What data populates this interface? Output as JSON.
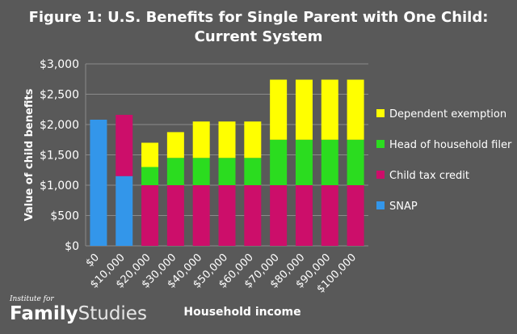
{
  "chart_data": {
    "type": "bar",
    "stacked": true,
    "title": "Figure 1: U.S. Benefits for Single Parent with One Child: Current System",
    "title_lines": [
      "Figure 1: U.S. Benefits for Single Parent with One Child:",
      "Current System"
    ],
    "xlabel": "Household income",
    "ylabel": "Value of child benefits",
    "ylim": [
      0,
      3000
    ],
    "yticks": [
      "$0",
      "$500",
      "$1,000",
      "$1,500",
      "$2,000",
      "$2,500",
      "$3,000"
    ],
    "grid": true,
    "legend_position": "right",
    "categories": [
      "$0",
      "$10,000",
      "$20,000",
      "$30,000",
      "$40,000",
      "$50,000",
      "$60,000",
      "$70,000",
      "$80,000",
      "$90,000",
      "$100,000"
    ],
    "series": [
      {
        "name": "SNAP",
        "color": "#3396ea",
        "values": [
          2080,
          1150,
          0,
          0,
          0,
          0,
          0,
          0,
          0,
          0,
          0
        ]
      },
      {
        "name": "Child tax credit",
        "color": "#cc0e6a",
        "values": [
          0,
          1010,
          1000,
          1000,
          1000,
          1000,
          1000,
          1000,
          1000,
          1000,
          1000
        ]
      },
      {
        "name": "Head of household filer",
        "color": "#2bdc1f",
        "values": [
          0,
          0,
          300,
          450,
          450,
          450,
          450,
          750,
          750,
          750,
          750
        ]
      },
      {
        "name": "Dependent exemption",
        "color": "#ffff00",
        "values": [
          0,
          0,
          400,
          425,
          600,
          600,
          600,
          990,
          990,
          990,
          990
        ]
      }
    ]
  },
  "logo": {
    "small": "Institute for",
    "bold": "Family",
    "light": "Studies"
  }
}
